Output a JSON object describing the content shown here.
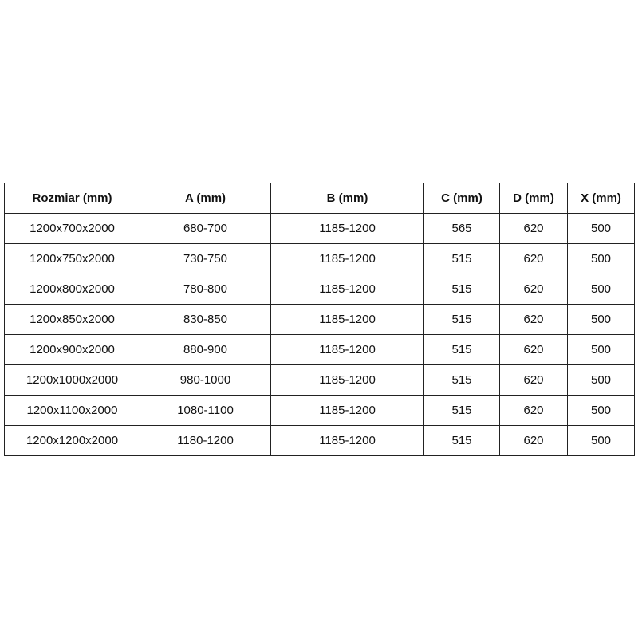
{
  "headers": [
    "Rozmiar (mm)",
    "A (mm)",
    "B (mm)",
    "C (mm)",
    "D (mm)",
    "X (mm)"
  ],
  "rows": [
    [
      "1200x700x2000",
      "680-700",
      "1185-1200",
      "565",
      "620",
      "500"
    ],
    [
      "1200x750x2000",
      "730-750",
      "1185-1200",
      "515",
      "620",
      "500"
    ],
    [
      "1200x800x2000",
      "780-800",
      "1185-1200",
      "515",
      "620",
      "500"
    ],
    [
      "1200x850x2000",
      "830-850",
      "1185-1200",
      "515",
      "620",
      "500"
    ],
    [
      "1200x900x2000",
      "880-900",
      "1185-1200",
      "515",
      "620",
      "500"
    ],
    [
      "1200x1000x2000",
      "980-1000",
      "1185-1200",
      "515",
      "620",
      "500"
    ],
    [
      "1200x1100x2000",
      "1080-1100",
      "1185-1200",
      "515",
      "620",
      "500"
    ],
    [
      "1200x1200x2000",
      "1180-1200",
      "1185-1200",
      "515",
      "620",
      "500"
    ]
  ]
}
